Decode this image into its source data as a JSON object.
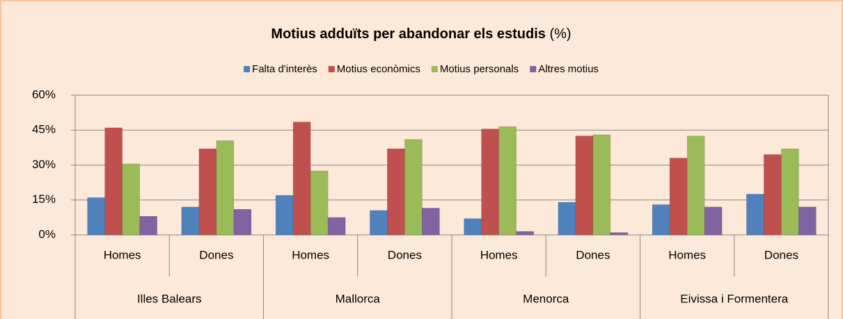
{
  "chart_data": {
    "type": "bar",
    "title": "Motius adduïts per abandonar els estudis",
    "title_suffix": "(%)",
    "categories": [
      "Homes",
      "Dones",
      "Homes",
      "Dones",
      "Homes",
      "Dones",
      "Homes",
      "Dones"
    ],
    "groups": [
      "Illes Balears",
      "Mallorca",
      "Menorca",
      "Eivissa i Formentera"
    ],
    "series": [
      {
        "name": "Falta d'interès",
        "color": "#4f81bd",
        "values": [
          16,
          12,
          17,
          10.5,
          7,
          14,
          13,
          17.5
        ]
      },
      {
        "name": "Motius econòmics",
        "color": "#c0504d",
        "values": [
          46,
          37,
          48.5,
          37,
          45.5,
          42.5,
          33,
          34.5
        ]
      },
      {
        "name": "Motius personals",
        "color": "#9bbb59",
        "values": [
          30.5,
          40.5,
          27.5,
          41,
          46.5,
          43,
          42.5,
          37
        ]
      },
      {
        "name": "Altres motius",
        "color": "#8064a2",
        "values": [
          8,
          11,
          7.5,
          11.5,
          1.5,
          1,
          12,
          12
        ]
      }
    ],
    "ylim": [
      0,
      60
    ],
    "yticks": [
      {
        "value": 0,
        "label": "0%"
      },
      {
        "value": 15,
        "label": "15%"
      },
      {
        "value": 30,
        "label": "30%"
      },
      {
        "value": 45,
        "label": "45%"
      },
      {
        "value": 60,
        "label": "60%"
      }
    ],
    "grid": true,
    "legend": "top"
  }
}
